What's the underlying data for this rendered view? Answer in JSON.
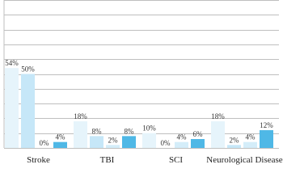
{
  "chart_data": {
    "type": "bar",
    "categories": [
      "Stroke",
      "TBI",
      "SCI",
      "Neurological Disease"
    ],
    "series": [
      {
        "color": "#e6f4fb",
        "values": [
          54,
          18,
          10,
          18
        ],
        "value_labels": [
          "54%",
          "18%",
          "10%",
          "18%"
        ]
      },
      {
        "color": "#c6e7f8",
        "values": [
          50,
          8,
          0,
          2
        ],
        "value_labels": [
          "50%",
          "8%",
          "0%",
          "2%"
        ]
      },
      {
        "color": "#d4edf9",
        "values": [
          0,
          2,
          4,
          4
        ],
        "value_labels": [
          "0%",
          "2%",
          "4%",
          "4%"
        ]
      },
      {
        "color": "#4fb8e6",
        "values": [
          4,
          8,
          6,
          12
        ],
        "value_labels": [
          "4%",
          "8%",
          "6%",
          "12%"
        ]
      }
    ],
    "ylim": [
      0,
      100
    ],
    "yticks": [
      0,
      10,
      20,
      30,
      40,
      50,
      60,
      70,
      80,
      90,
      100
    ],
    "grid": true
  }
}
